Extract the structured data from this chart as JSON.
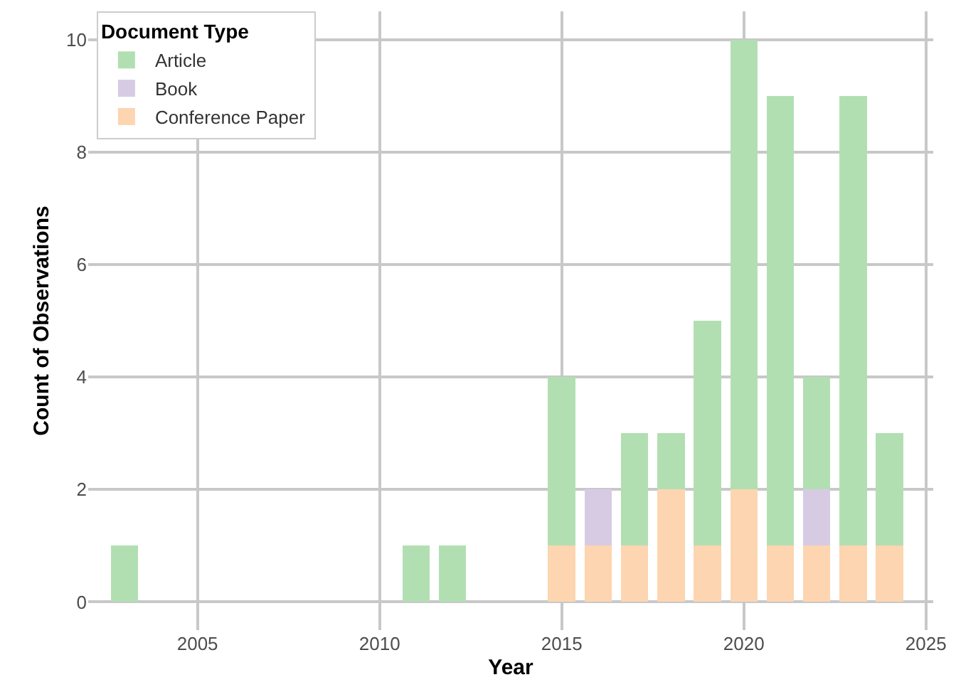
{
  "chart_data": {
    "type": "bar",
    "stacked": true,
    "xlabel": "Year",
    "ylabel": "Count of Observations",
    "legend_title": "Document Type",
    "x": [
      2003,
      2011,
      2012,
      2015,
      2016,
      2017,
      2018,
      2019,
      2020,
      2021,
      2022,
      2023,
      2024
    ],
    "series": [
      {
        "name": "Conference Paper",
        "color": "#fdd5b0",
        "values": [
          0,
          0,
          0,
          1,
          1,
          1,
          2,
          1,
          2,
          1,
          1,
          1,
          1
        ]
      },
      {
        "name": "Book",
        "color": "#d7cbe4",
        "values": [
          0,
          0,
          0,
          0,
          1,
          0,
          0,
          0,
          0,
          0,
          1,
          0,
          0
        ]
      },
      {
        "name": "Article",
        "color": "#b2dfb2",
        "values": [
          1,
          1,
          1,
          3,
          0,
          2,
          1,
          4,
          8,
          8,
          2,
          8,
          2
        ]
      }
    ],
    "xlim": [
      2002,
      2025.2
    ],
    "xticks": [
      2005,
      2010,
      2015,
      2020,
      2025
    ],
    "ylim": [
      -0.5,
      10.5
    ],
    "yticks": [
      0,
      2,
      4,
      6,
      8,
      10
    ],
    "grid": true,
    "legend": "top left"
  }
}
